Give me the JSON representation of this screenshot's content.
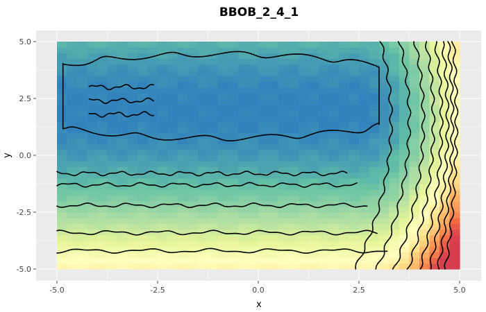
{
  "chart_data": {
    "type": "heatmap",
    "title": "BBOB_2_4_1",
    "xlabel": "x",
    "ylabel": "y",
    "xlim": [
      -5,
      5
    ],
    "ylim": [
      -5,
      5
    ],
    "x_ticks": [
      -5,
      -2.5,
      0,
      2.5,
      5
    ],
    "y_ticks": [
      -5,
      -2.5,
      0,
      2.5,
      5
    ],
    "x_tick_labels": [
      "-5.0",
      "-2.5",
      "0.0",
      "2.5",
      "5.0"
    ],
    "y_tick_labels": [
      "-5.0",
      "-2.5",
      "0.0",
      "2.5",
      "5.0"
    ],
    "grid": true,
    "colormap": [
      "#3182bd",
      "#66c2a5",
      "#abdda4",
      "#e6f598",
      "#ffffbf",
      "#fee08b",
      "#fdae61",
      "#f46d43",
      "#d53e4f"
    ],
    "contour_levels_y": [
      -4.2,
      -3.4,
      -2.2,
      -1.3,
      -0.8
    ]
  }
}
